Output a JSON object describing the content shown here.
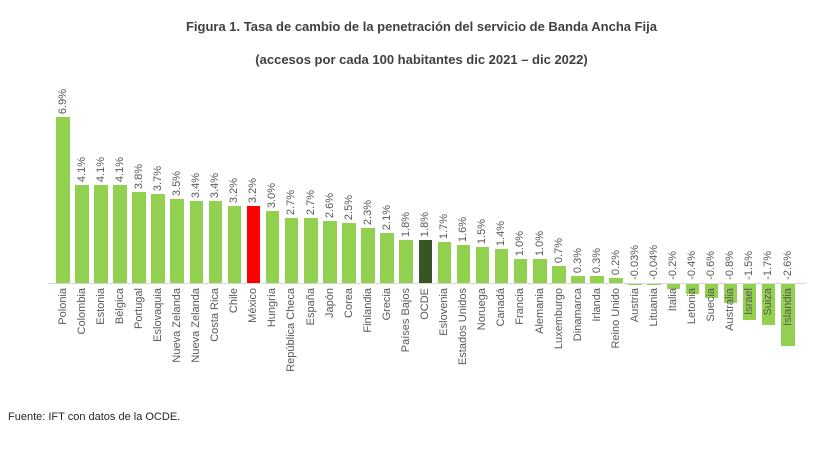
{
  "figure": {
    "title": "Figura 1. Tasa de cambio de la penetración del servicio de Banda Ancha Fija",
    "subtitle": "(accesos por cada 100 habitantes dic 2021 – dic 2022)",
    "source": "Fuente: IFT con datos de la OCDE."
  },
  "chart_data": {
    "type": "bar",
    "orientation": "vertical",
    "title": "Figura 1. Tasa de cambio de la penetración del servicio de Banda Ancha Fija",
    "subtitle": "(accesos por cada 100 habitantes dic 2021 – dic 2022)",
    "unit": "%",
    "ylim": [
      -2.6,
      6.9
    ],
    "grid": false,
    "value_labels": "rotated-90-outside-end",
    "category_labels": "rotated-90-below-axis",
    "axis_color": "#d9d9d9",
    "label_color": "#595959",
    "colors": {
      "default": "#92d050",
      "mexico_highlight": "#ff0000",
      "ocde_highlight": "#375623"
    },
    "bars": [
      {
        "label": "Polonia",
        "value": 6.9,
        "display": "6.9%",
        "color": "default"
      },
      {
        "label": "Colombia",
        "value": 4.1,
        "display": "4.1%",
        "color": "default"
      },
      {
        "label": "Estonia",
        "value": 4.1,
        "display": "4.1%",
        "color": "default"
      },
      {
        "label": "Bélgica",
        "value": 4.1,
        "display": "4.1%",
        "color": "default"
      },
      {
        "label": "Portugal",
        "value": 3.8,
        "display": "3.8%",
        "color": "default"
      },
      {
        "label": "Eslovaquia",
        "value": 3.7,
        "display": "3.7%",
        "color": "default"
      },
      {
        "label": "Nueva Zelanda",
        "value": 3.5,
        "display": "3.5%",
        "color": "default"
      },
      {
        "label": "Nueva Zelanda",
        "value": 3.4,
        "display": "3.4%",
        "color": "default"
      },
      {
        "label": "Costa Rica",
        "value": 3.4,
        "display": "3.4%",
        "color": "default"
      },
      {
        "label": "Chile",
        "value": 3.2,
        "display": "3.2%",
        "color": "default"
      },
      {
        "label": "México",
        "value": 3.2,
        "display": "3.2%",
        "color": "mexico_highlight"
      },
      {
        "label": "Hungría",
        "value": 3.0,
        "display": "3.0%",
        "color": "default"
      },
      {
        "label": "República Checa",
        "value": 2.7,
        "display": "2.7%",
        "color": "default"
      },
      {
        "label": "España",
        "value": 2.7,
        "display": "2.7%",
        "color": "default"
      },
      {
        "label": "Japón",
        "value": 2.6,
        "display": "2.6%",
        "color": "default"
      },
      {
        "label": "Corea",
        "value": 2.5,
        "display": "2.5%",
        "color": "default"
      },
      {
        "label": "Finlandia",
        "value": 2.3,
        "display": "2.3%",
        "color": "default"
      },
      {
        "label": "Grecia",
        "value": 2.1,
        "display": "2.1%",
        "color": "default"
      },
      {
        "label": "Países Bajos",
        "value": 1.8,
        "display": "1.8%",
        "color": "default"
      },
      {
        "label": "OCDE",
        "value": 1.8,
        "display": "1.8%",
        "color": "ocde_highlight"
      },
      {
        "label": "Eslovenia",
        "value": 1.7,
        "display": "1.7%",
        "color": "default"
      },
      {
        "label": "Estados Unidos",
        "value": 1.6,
        "display": "1.6%",
        "color": "default"
      },
      {
        "label": "Noruega",
        "value": 1.5,
        "display": "1.5%",
        "color": "default"
      },
      {
        "label": "Canadá",
        "value": 1.4,
        "display": "1.4%",
        "color": "default"
      },
      {
        "label": "Francia",
        "value": 1.0,
        "display": "1.0%",
        "color": "default"
      },
      {
        "label": "Alemania",
        "value": 1.0,
        "display": "1.0%",
        "color": "default"
      },
      {
        "label": "Luxemburgo",
        "value": 0.7,
        "display": "0.7%",
        "color": "default"
      },
      {
        "label": "Dinamarca",
        "value": 0.3,
        "display": "0.3%",
        "color": "default"
      },
      {
        "label": "Irlanda",
        "value": 0.3,
        "display": "0.3%",
        "color": "default"
      },
      {
        "label": "Reino Unido",
        "value": 0.2,
        "display": "0.2%",
        "color": "default"
      },
      {
        "label": "Austria",
        "value": -0.03,
        "display": "-0.03%",
        "color": "default"
      },
      {
        "label": "Lituania",
        "value": -0.04,
        "display": "-0.04%",
        "color": "default"
      },
      {
        "label": "Italia",
        "value": -0.2,
        "display": "-0.2%",
        "color": "default"
      },
      {
        "label": "Letonia",
        "value": -0.4,
        "display": "-0.4%",
        "color": "default"
      },
      {
        "label": "Suecia",
        "value": -0.6,
        "display": "-0.6%",
        "color": "default"
      },
      {
        "label": "Australia",
        "value": -0.8,
        "display": "-0.8%",
        "color": "default"
      },
      {
        "label": "Israel",
        "value": -1.5,
        "display": "-1.5%",
        "color": "default"
      },
      {
        "label": "Suiza",
        "value": -1.7,
        "display": "-1.7%",
        "color": "default"
      },
      {
        "label": "Islandia",
        "value": -2.6,
        "display": "-2.6%",
        "color": "default"
      }
    ]
  }
}
